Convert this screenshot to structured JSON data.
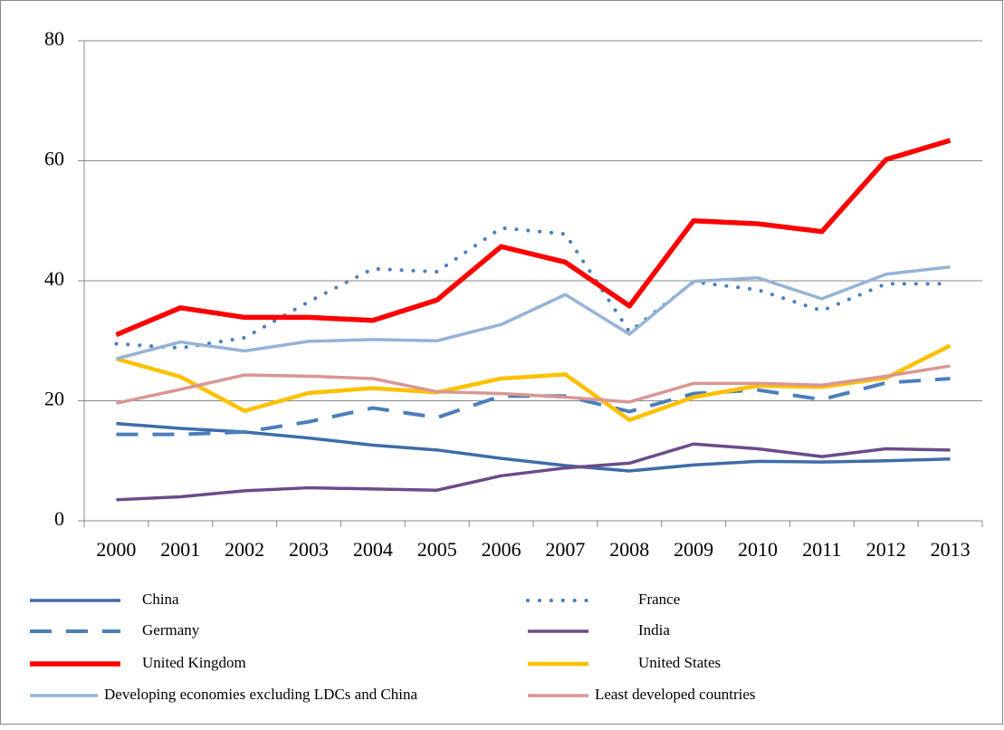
{
  "chart_data": {
    "type": "line",
    "categories": [
      "2000",
      "2001",
      "2002",
      "2003",
      "2004",
      "2005",
      "2006",
      "2007",
      "2008",
      "2009",
      "2010",
      "2011",
      "2012",
      "2013"
    ],
    "ylim": [
      0,
      80
    ],
    "yticks": [
      0,
      20,
      40,
      60,
      80
    ],
    "grid": true,
    "series": [
      {
        "name": "China",
        "color": "#3d6ca8",
        "style": "solid",
        "values": [
          16.2,
          15.4,
          14.8,
          13.8,
          12.6,
          11.8,
          10.4,
          9.2,
          8.3,
          9.3,
          9.9,
          9.8,
          10.0,
          10.3
        ]
      },
      {
        "name": "France",
        "color": "#4a7ebb",
        "style": "dotted",
        "values": [
          29.5,
          28.8,
          30.5,
          36.5,
          42.0,
          41.5,
          48.8,
          47.8,
          31.5,
          39.8,
          38.5,
          35.0,
          39.5,
          39.5
        ]
      },
      {
        "name": "Germany",
        "color": "#4a7ebb",
        "style": "dashed",
        "values": [
          14.4,
          14.4,
          14.8,
          16.5,
          18.8,
          17.2,
          20.8,
          20.8,
          18.2,
          21.2,
          21.8,
          20.2,
          23.0,
          23.7
        ]
      },
      {
        "name": "India",
        "color": "#6b4c8a",
        "style": "solid",
        "values": [
          3.5,
          4.0,
          5.0,
          5.5,
          5.3,
          5.1,
          7.5,
          8.8,
          9.6,
          12.8,
          12.0,
          10.7,
          12.0,
          11.8
        ]
      },
      {
        "name": "United Kingdom",
        "color": "#ff0000",
        "style": "solid",
        "values": [
          31.0,
          35.5,
          33.9,
          33.9,
          33.4,
          36.8,
          45.7,
          43.1,
          35.8,
          50.0,
          49.5,
          48.2,
          60.2,
          63.4
        ]
      },
      {
        "name": "United States",
        "color": "#ffc000",
        "style": "solid",
        "values": [
          27.0,
          24.0,
          18.3,
          21.3,
          22.1,
          21.4,
          23.7,
          24.4,
          16.8,
          20.6,
          22.5,
          22.3,
          23.8,
          29.2
        ]
      },
      {
        "name": "Developing economies excluding LDCs and China",
        "color": "#95b3d7",
        "style": "solid",
        "values": [
          27.0,
          29.8,
          28.3,
          29.9,
          30.2,
          30.0,
          32.7,
          37.7,
          31.1,
          39.9,
          40.5,
          37.0,
          41.1,
          42.3
        ]
      },
      {
        "name": "Least developed countries",
        "color": "#d99694",
        "style": "solid",
        "values": [
          19.6,
          21.9,
          24.3,
          24.1,
          23.7,
          21.5,
          21.2,
          20.6,
          19.8,
          22.9,
          22.9,
          22.6,
          24.1,
          25.8
        ]
      }
    ]
  }
}
